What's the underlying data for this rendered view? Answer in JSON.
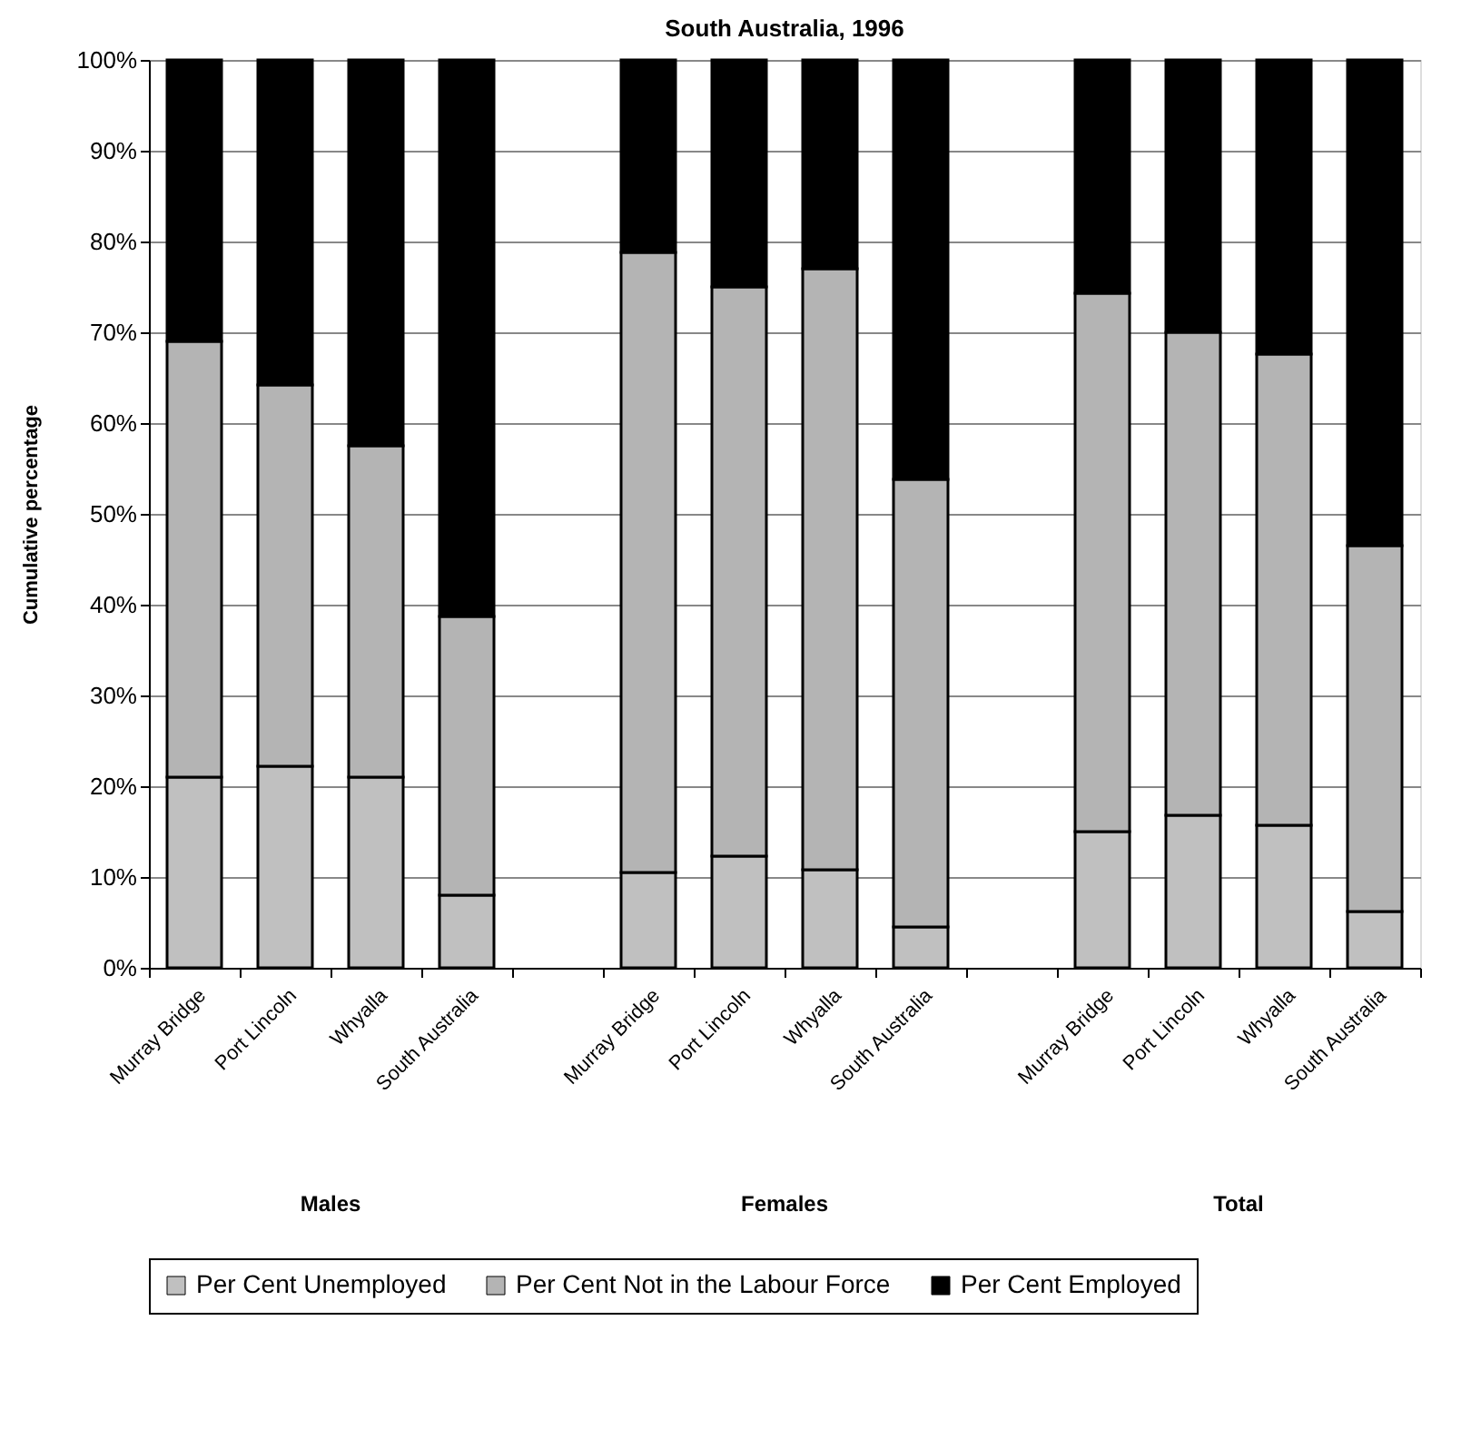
{
  "chart_data": {
    "type": "bar",
    "title": "South Australia, 1996",
    "ylabel": "Cumulative percentage",
    "categories": [
      "Murray Bridge",
      "Port Lincoln",
      "Whyalla",
      "South Australia",
      null,
      "Murray Bridge",
      "Port Lincoln",
      "Whyalla",
      "South Australia",
      null,
      "Murray Bridge",
      "Port Lincoln",
      "Whyalla",
      "South Australia"
    ],
    "stacked": true,
    "series": [
      {
        "name": "Per Cent Unemployed",
        "color": "#c0c0c0",
        "values": [
          21,
          22.2,
          21,
          8,
          null,
          10.5,
          12.3,
          10.8,
          4.5,
          null,
          15,
          16.8,
          15.7,
          6.2
        ]
      },
      {
        "name": "Per Cent Not in the Labour Force",
        "color": "#b4b4b4",
        "values": [
          48,
          42,
          36.5,
          30.7,
          null,
          68.3,
          62.7,
          66.2,
          49.3,
          null,
          59.3,
          53.2,
          51.9,
          40.3
        ]
      },
      {
        "name": "Per Cent Employed",
        "color": "#000000",
        "values": [
          31,
          35.8,
          42.5,
          61.3,
          null,
          21.2,
          25,
          23,
          46.2,
          null,
          25.7,
          30,
          32.4,
          53.5
        ]
      }
    ],
    "ylim": [
      0,
      100
    ],
    "yticks": [
      {
        "value": 0,
        "label": "0%"
      },
      {
        "value": 10,
        "label": "10%"
      },
      {
        "value": 20,
        "label": "20%"
      },
      {
        "value": 30,
        "label": "30%"
      },
      {
        "value": 40,
        "label": "40%"
      },
      {
        "value": 50,
        "label": "50%"
      },
      {
        "value": 60,
        "label": "60%"
      },
      {
        "value": 70,
        "label": "70%"
      },
      {
        "value": 80,
        "label": "80%"
      },
      {
        "value": 90,
        "label": "90%"
      },
      {
        "value": 100,
        "label": "100%"
      }
    ],
    "annotations": [
      "Males",
      "Females",
      "Total"
    ],
    "grid": "y",
    "legend": "bottom"
  }
}
